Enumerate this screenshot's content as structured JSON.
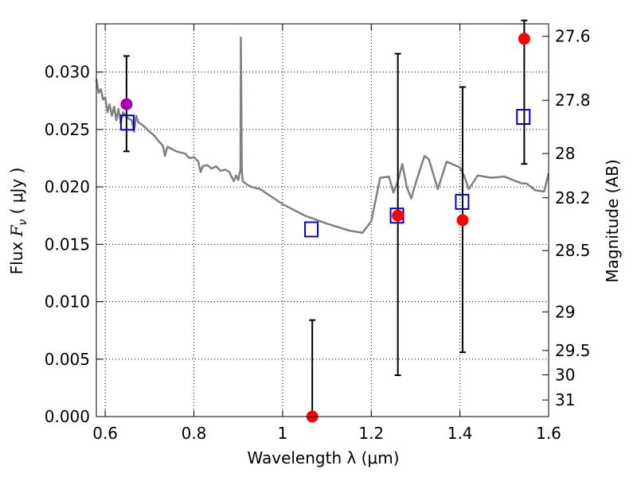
{
  "chart_data": {
    "type": "scatter",
    "xlabel": "Wavelength  λ (μm)",
    "ylabel": "Flux  F_ν  ( μJy )",
    "ylabel_parts": {
      "prefix": "Flux  ",
      "symbol": "F",
      "sub": "ν",
      "unit_open": "  ( ",
      "unit": "μJy",
      "unit_close": " )"
    },
    "y2label": "Magnitude (AB)",
    "xlim": [
      0.58,
      1.6
    ],
    "ylim": [
      0.0,
      0.0342
    ],
    "grid": true,
    "x_ticks": [
      0.6,
      0.8,
      1.0,
      1.2,
      1.4,
      1.6
    ],
    "x_tick_labels": [
      "0.6",
      "0.8",
      "1",
      "1.2",
      "1.4",
      "1.6"
    ],
    "y_ticks": [
      0.0,
      0.005,
      0.01,
      0.015,
      0.02,
      0.025,
      0.03
    ],
    "y_tick_labels": [
      "0.000",
      "0.005",
      "0.010",
      "0.015",
      "0.020",
      "0.025",
      "0.030"
    ],
    "y2_tick_labels": [
      "27.6",
      "27.8",
      "28",
      "28.2",
      "28.5",
      "29",
      "29.5",
      "30",
      "31"
    ],
    "y2_tick_values": [
      27.6,
      27.8,
      28,
      28.2,
      28.5,
      29,
      29.5,
      30,
      31
    ],
    "series": [
      {
        "kind": "line",
        "color": "#808080",
        "x": [
          0.58,
          0.585,
          0.59,
          0.595,
          0.6,
          0.605,
          0.61,
          0.615,
          0.62,
          0.625,
          0.63,
          0.635,
          0.64,
          0.65,
          0.66,
          0.665,
          0.67,
          0.675,
          0.68,
          0.69,
          0.7,
          0.71,
          0.72,
          0.73,
          0.735,
          0.74,
          0.75,
          0.76,
          0.77,
          0.78,
          0.79,
          0.8,
          0.81,
          0.815,
          0.82,
          0.83,
          0.84,
          0.85,
          0.86,
          0.87,
          0.88,
          0.89,
          0.895,
          0.9,
          0.905,
          0.906,
          0.908,
          0.91,
          0.92,
          0.93,
          0.95,
          1.0,
          1.05,
          1.1,
          1.15,
          1.18,
          1.2,
          1.22,
          1.24,
          1.25,
          1.26,
          1.27,
          1.28,
          1.29,
          1.3,
          1.32,
          1.33,
          1.35,
          1.37,
          1.4,
          1.41,
          1.42,
          1.44,
          1.47,
          1.5,
          1.54,
          1.55,
          1.57,
          1.59,
          1.6
        ],
        "y": [
          0.0294,
          0.0282,
          0.0285,
          0.0276,
          0.0278,
          0.0265,
          0.0272,
          0.0262,
          0.027,
          0.0258,
          0.0268,
          0.0255,
          0.0265,
          0.026,
          0.0258,
          0.0248,
          0.0262,
          0.0256,
          0.0255,
          0.0252,
          0.0248,
          0.0245,
          0.024,
          0.0236,
          0.0227,
          0.0235,
          0.0233,
          0.0231,
          0.023,
          0.0229,
          0.0225,
          0.0226,
          0.0222,
          0.0213,
          0.0218,
          0.0219,
          0.0216,
          0.0218,
          0.0214,
          0.0215,
          0.0213,
          0.0205,
          0.021,
          0.0206,
          0.0215,
          0.033,
          0.0215,
          0.0205,
          0.0202,
          0.02,
          0.0198,
          0.0185,
          0.0175,
          0.0168,
          0.0162,
          0.016,
          0.017,
          0.0208,
          0.0209,
          0.0195,
          0.0205,
          0.022,
          0.02,
          0.019,
          0.0203,
          0.0227,
          0.0224,
          0.0198,
          0.0222,
          0.0217,
          0.0209,
          0.0198,
          0.021,
          0.0208,
          0.0209,
          0.0203,
          0.0203,
          0.0197,
          0.0196,
          0.0212
        ]
      },
      {
        "kind": "model_points",
        "marker": "square",
        "color": "#0000cc",
        "x": [
          0.65,
          1.065,
          1.258,
          1.405,
          1.543
        ],
        "y": [
          0.0256,
          0.0163,
          0.0175,
          0.0187,
          0.0261
        ]
      },
      {
        "kind": "observed",
        "marker": "circle",
        "color": "#ff0000",
        "x": [
          0.648,
          1.067,
          1.26,
          1.406,
          1.545
        ],
        "y": [
          0.0272,
          0.0,
          0.0175,
          0.0171,
          0.0329
        ],
        "point_colors": [
          "#aa00aa",
          "#ff0000",
          "#ff0000",
          "#ff0000",
          "#ff0000"
        ],
        "yerr_low": [
          0.0231,
          0.0,
          0.0036,
          0.0056,
          0.022
        ],
        "yerr_high": [
          0.0314,
          0.0084,
          0.0316,
          0.0287,
          0.0345
        ]
      }
    ]
  }
}
